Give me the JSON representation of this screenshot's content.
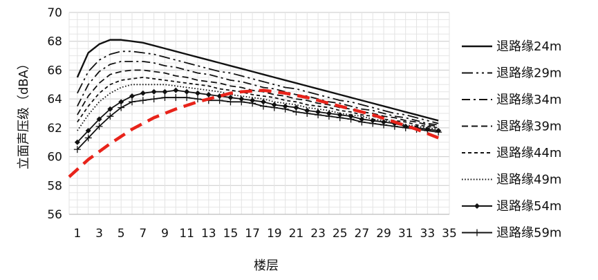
{
  "chart_data": {
    "type": "line",
    "xlabel": "楼层",
    "ylabel": "立面声压级（dBA）",
    "xlim": [
      1,
      35
    ],
    "ylim": [
      56,
      70
    ],
    "x_ticks": [
      1,
      3,
      5,
      7,
      9,
      11,
      13,
      15,
      17,
      19,
      21,
      23,
      25,
      27,
      29,
      31,
      33,
      35
    ],
    "y_ticks": [
      56,
      58,
      60,
      62,
      64,
      66,
      68,
      70
    ],
    "grid": true,
    "legend_position": "right",
    "series": [
      {
        "name": "退路缘24m",
        "style": "solid",
        "x": [
          1,
          2,
          3,
          4,
          5,
          6,
          7,
          8,
          9,
          10,
          11,
          12,
          13,
          14,
          15,
          16,
          17,
          18,
          19,
          20,
          21,
          22,
          23,
          24,
          25,
          26,
          27,
          28,
          29,
          30,
          31,
          32,
          33,
          34
        ],
        "values": [
          65.5,
          67.2,
          67.8,
          68.1,
          68.1,
          68.0,
          67.9,
          67.7,
          67.5,
          67.3,
          67.1,
          66.9,
          66.7,
          66.5,
          66.3,
          66.1,
          65.9,
          65.7,
          65.5,
          65.3,
          65.1,
          64.9,
          64.7,
          64.5,
          64.3,
          64.1,
          63.9,
          63.7,
          63.5,
          63.3,
          63.1,
          62.9,
          62.7,
          62.5
        ]
      },
      {
        "name": "退路缘29m",
        "style": "longdash-dot",
        "x": [
          1,
          2,
          3,
          4,
          5,
          6,
          7,
          8,
          9,
          10,
          11,
          12,
          13,
          14,
          15,
          16,
          17,
          18,
          19,
          20,
          21,
          22,
          23,
          24,
          25,
          26,
          27,
          28,
          29,
          30,
          31,
          32,
          33,
          34
        ],
        "values": [
          64.4,
          65.9,
          66.7,
          67.1,
          67.3,
          67.3,
          67.2,
          67.1,
          66.9,
          66.7,
          66.5,
          66.3,
          66.1,
          65.9,
          65.8,
          65.6,
          65.4,
          65.2,
          65.0,
          64.8,
          64.7,
          64.5,
          64.3,
          64.1,
          63.9,
          63.8,
          63.6,
          63.4,
          63.2,
          63.0,
          62.9,
          62.7,
          62.5,
          62.3
        ]
      },
      {
        "name": "退路缘34m",
        "style": "dash-dot",
        "x": [
          1,
          2,
          3,
          4,
          5,
          6,
          7,
          8,
          9,
          10,
          11,
          12,
          13,
          14,
          15,
          16,
          17,
          18,
          19,
          20,
          21,
          22,
          23,
          24,
          25,
          26,
          27,
          28,
          29,
          30,
          31,
          32,
          33,
          34
        ],
        "values": [
          63.5,
          65.0,
          65.9,
          66.4,
          66.6,
          66.6,
          66.6,
          66.5,
          66.3,
          66.2,
          66.0,
          65.8,
          65.7,
          65.5,
          65.3,
          65.2,
          65.0,
          64.8,
          64.7,
          64.5,
          64.3,
          64.2,
          64.0,
          63.8,
          63.7,
          63.5,
          63.3,
          63.2,
          63.0,
          62.8,
          62.7,
          62.5,
          62.3,
          62.2
        ]
      },
      {
        "name": "退路缘39m",
        "style": "dash",
        "x": [
          1,
          2,
          3,
          4,
          5,
          6,
          7,
          8,
          9,
          10,
          11,
          12,
          13,
          14,
          15,
          16,
          17,
          18,
          19,
          20,
          21,
          22,
          23,
          24,
          25,
          26,
          27,
          28,
          29,
          30,
          31,
          32,
          33,
          34
        ],
        "values": [
          62.9,
          64.2,
          65.1,
          65.7,
          65.9,
          66.0,
          66.0,
          65.9,
          65.8,
          65.6,
          65.5,
          65.3,
          65.2,
          65.1,
          64.9,
          64.8,
          64.6,
          64.5,
          64.3,
          64.2,
          64.0,
          63.9,
          63.7,
          63.6,
          63.4,
          63.3,
          63.1,
          63.0,
          62.8,
          62.7,
          62.5,
          62.4,
          62.2,
          62.1
        ]
      },
      {
        "name": "退路缘44m",
        "style": "shortdash",
        "x": [
          1,
          2,
          3,
          4,
          5,
          6,
          7,
          8,
          9,
          10,
          11,
          12,
          13,
          14,
          15,
          16,
          17,
          18,
          19,
          20,
          21,
          22,
          23,
          24,
          25,
          26,
          27,
          28,
          29,
          30,
          31,
          32,
          33,
          34
        ],
        "values": [
          62.4,
          63.5,
          64.4,
          65.0,
          65.3,
          65.4,
          65.5,
          65.4,
          65.3,
          65.2,
          65.1,
          65.0,
          64.9,
          64.7,
          64.6,
          64.5,
          64.3,
          64.2,
          64.1,
          63.9,
          63.8,
          63.6,
          63.5,
          63.4,
          63.2,
          63.1,
          62.9,
          62.8,
          62.6,
          62.5,
          62.4,
          62.2,
          62.1,
          62.0
        ]
      },
      {
        "name": "退路缘49m",
        "style": "dotted",
        "x": [
          1,
          2,
          3,
          4,
          5,
          6,
          7,
          8,
          9,
          10,
          11,
          12,
          13,
          14,
          15,
          16,
          17,
          18,
          19,
          20,
          21,
          22,
          23,
          24,
          25,
          26,
          27,
          28,
          29,
          30,
          31,
          32,
          33,
          34
        ],
        "values": [
          61.8,
          62.9,
          63.8,
          64.4,
          64.8,
          65.0,
          65.0,
          65.0,
          65.0,
          64.9,
          64.8,
          64.7,
          64.6,
          64.5,
          64.3,
          64.2,
          64.1,
          64.0,
          63.8,
          63.7,
          63.6,
          63.4,
          63.3,
          63.2,
          63.0,
          62.9,
          62.8,
          62.6,
          62.5,
          62.4,
          62.2,
          62.1,
          62.0,
          61.9
        ]
      },
      {
        "name": "退路缘54m",
        "style": "diamond",
        "x": [
          1,
          2,
          3,
          4,
          5,
          6,
          7,
          8,
          9,
          10,
          11,
          12,
          13,
          14,
          15,
          16,
          17,
          18,
          19,
          20,
          21,
          22,
          23,
          24,
          25,
          26,
          27,
          28,
          29,
          30,
          31,
          32,
          33,
          34
        ],
        "values": [
          61.0,
          61.8,
          62.6,
          63.3,
          63.8,
          64.2,
          64.4,
          64.5,
          64.5,
          64.6,
          64.5,
          64.4,
          64.3,
          64.2,
          64.1,
          64.0,
          63.9,
          63.8,
          63.6,
          63.5,
          63.4,
          63.2,
          63.1,
          63.0,
          62.9,
          62.8,
          62.6,
          62.5,
          62.4,
          62.3,
          62.1,
          62.0,
          61.9,
          61.8
        ]
      },
      {
        "name": "退路缘59m",
        "style": "plus",
        "x": [
          1,
          2,
          3,
          4,
          5,
          6,
          7,
          8,
          9,
          10,
          11,
          12,
          13,
          14,
          15,
          16,
          17,
          18,
          19,
          20,
          21,
          22,
          23,
          24,
          25,
          26,
          27,
          28,
          29,
          30,
          31,
          32,
          33,
          34
        ],
        "values": [
          60.5,
          61.3,
          62.1,
          62.8,
          63.4,
          63.8,
          63.9,
          64.0,
          64.1,
          64.1,
          64.1,
          64.0,
          63.9,
          63.9,
          63.8,
          63.8,
          63.7,
          63.5,
          63.4,
          63.3,
          63.1,
          63.0,
          62.9,
          62.8,
          62.7,
          62.6,
          62.4,
          62.3,
          62.2,
          62.1,
          62.0,
          61.9,
          61.8,
          61.7
        ]
      },
      {
        "style": "red-dash",
        "color": "#e8231a",
        "x": [
          0,
          2,
          4,
          6,
          8,
          10,
          12,
          14,
          15,
          16,
          18,
          20,
          22,
          24,
          26,
          28,
          30,
          32,
          34
        ],
        "values": [
          58.6,
          59.8,
          60.9,
          61.9,
          62.7,
          63.3,
          63.8,
          64.2,
          64.4,
          64.5,
          64.6,
          64.4,
          64.1,
          63.7,
          63.3,
          62.9,
          62.4,
          61.9,
          61.3
        ]
      }
    ]
  }
}
